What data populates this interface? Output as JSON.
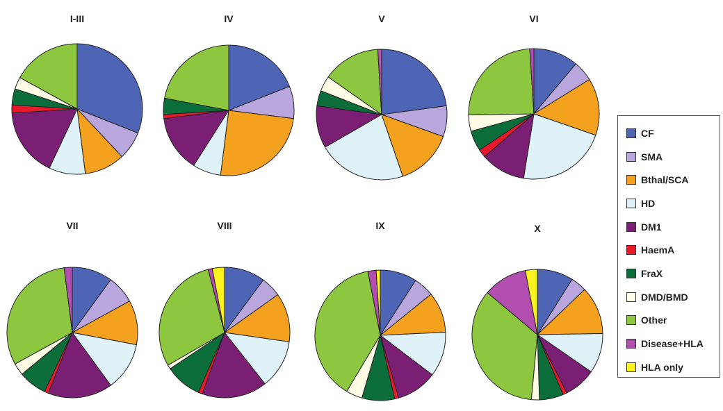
{
  "chart_data": {
    "type": "pie",
    "categories": [
      "CF",
      "SMA",
      "Bthal/SCA",
      "HD",
      "DM1",
      "HaemA",
      "FraX",
      "DMD/BMD",
      "Other",
      "Disease+HLA",
      "HLA only"
    ],
    "colors": [
      "#4d65b4",
      "#b9a6dc",
      "#f4a11f",
      "#dff2f8",
      "#7a1f74",
      "#e8192c",
      "#0b6d3a",
      "#fffbe4",
      "#8dc63f",
      "#b24fae",
      "#f9f21e"
    ],
    "legend_position": "right",
    "pies": [
      {
        "title": "I-III",
        "values": [
          31,
          7,
          10,
          9,
          17,
          2,
          4,
          3,
          17,
          0,
          0
        ]
      },
      {
        "title": "IV",
        "values": [
          19,
          8,
          25,
          7,
          14,
          1,
          4,
          0,
          22,
          0,
          0
        ]
      },
      {
        "title": "V",
        "values": [
          24,
          8,
          15,
          23,
          11,
          0,
          4,
          4,
          15,
          1,
          0
        ]
      },
      {
        "title": "VI",
        "values": [
          11,
          5,
          14,
          22,
          11,
          2,
          5,
          4,
          24,
          1,
          0
        ]
      },
      {
        "title": "VII",
        "values": [
          10,
          7,
          11,
          12,
          16,
          1,
          7,
          3,
          31,
          2,
          0
        ]
      },
      {
        "title": "VIII",
        "values": [
          10,
          5,
          12,
          12,
          16,
          1,
          9,
          1,
          29,
          1,
          3
        ]
      },
      {
        "title": "IX",
        "values": [
          9,
          5,
          10,
          11,
          10,
          1,
          8,
          4,
          38,
          2,
          1
        ]
      },
      {
        "title": "X",
        "values": [
          9,
          4,
          12,
          10,
          8,
          1,
          6,
          2,
          35,
          11,
          3
        ]
      }
    ]
  }
}
